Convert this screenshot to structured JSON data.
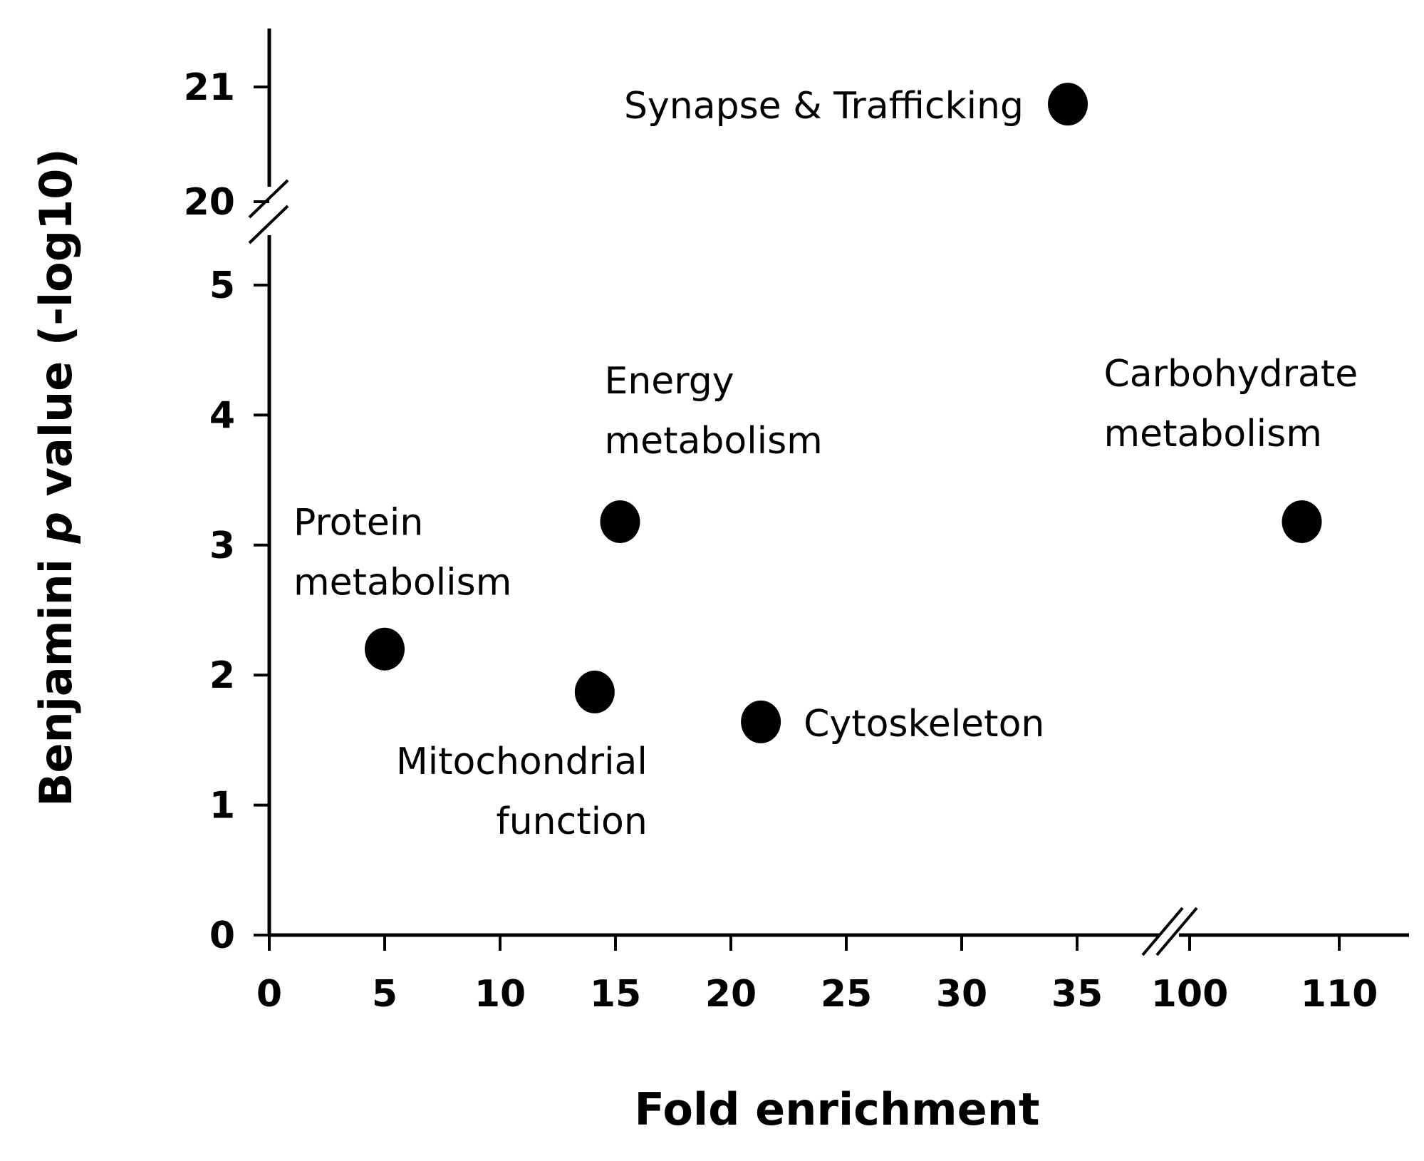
{
  "chart_data": {
    "type": "scatter",
    "title": "",
    "xlabel": "Fold enrichment",
    "ylabel_parts": [
      "Benjamini ",
      "p",
      " value (-log10)"
    ],
    "x_axis": {
      "segments": [
        {
          "range": [
            0,
            37.5
          ],
          "ticks": [
            0,
            5,
            10,
            15,
            20,
            25,
            30,
            35
          ]
        },
        {
          "range": [
            95,
            113
          ],
          "ticks": [
            100,
            110
          ]
        }
      ],
      "break_between": [
        37.5,
        95
      ]
    },
    "y_axis": {
      "segments": [
        {
          "range": [
            0,
            5.6
          ],
          "ticks": [
            0,
            1,
            2,
            3,
            4,
            5
          ]
        },
        {
          "range": [
            19.9,
            21.5
          ],
          "ticks": [
            20,
            21
          ]
        }
      ],
      "break_between": [
        5.6,
        19.9
      ]
    },
    "grid": false,
    "points": [
      {
        "x": 5.0,
        "y": 2.2,
        "label": [
          "Protein",
          "metabolism"
        ]
      },
      {
        "x": 14.1,
        "y": 1.87,
        "label": [
          "Mitochondrial",
          "function"
        ]
      },
      {
        "x": 15.2,
        "y": 3.18,
        "label": [
          "Energy",
          "metabolism"
        ]
      },
      {
        "x": 21.3,
        "y": 1.64,
        "label": [
          "Cytoskeleton"
        ]
      },
      {
        "x": 34.6,
        "y": 20.85,
        "label": [
          "Synapse & Trafficking"
        ]
      },
      {
        "x": 107.5,
        "y": 3.18,
        "label": [
          "Carbohydrate",
          "metabolism"
        ]
      }
    ]
  }
}
